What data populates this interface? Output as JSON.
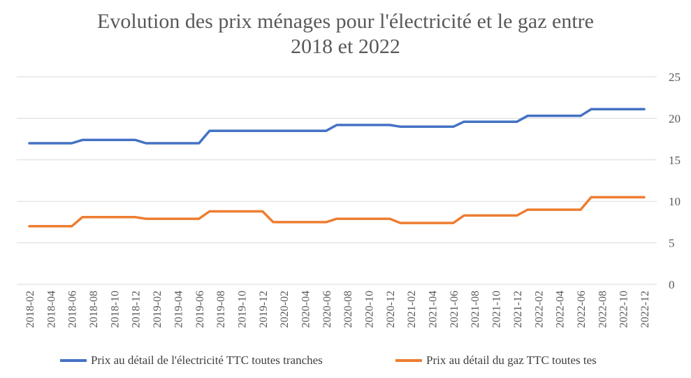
{
  "chart_data": {
    "type": "line",
    "title_line1": "Evolution des prix ménages pour l'électricité et le gaz entre",
    "title_line2": "2018 et 2022",
    "xlabel": "",
    "ylabel": "",
    "ylim": [
      0,
      25
    ],
    "yticks": [
      0,
      5,
      10,
      15,
      20,
      25
    ],
    "y_axis_side": "right",
    "grid": true,
    "legend_position": "bottom",
    "x": [
      "2018-02",
      "2018-03",
      "2018-04",
      "2018-05",
      "2018-06",
      "2018-07",
      "2018-08",
      "2018-09",
      "2018-10",
      "2018-11",
      "2018-12",
      "2019-01",
      "2019-02",
      "2019-03",
      "2019-04",
      "2019-05",
      "2019-06",
      "2019-07",
      "2019-08",
      "2019-09",
      "2019-10",
      "2019-11",
      "2019-12",
      "2020-01",
      "2020-02",
      "2020-03",
      "2020-04",
      "2020-05",
      "2020-06",
      "2020-07",
      "2020-08",
      "2020-09",
      "2020-10",
      "2020-11",
      "2020-12",
      "2021-01",
      "2021-02",
      "2021-03",
      "2021-04",
      "2021-05",
      "2021-06",
      "2021-07",
      "2021-08",
      "2021-09",
      "2021-10",
      "2021-11",
      "2021-12",
      "2022-01",
      "2022-02",
      "2022-03",
      "2022-04",
      "2022-05",
      "2022-06",
      "2022-07",
      "2022-08",
      "2022-09",
      "2022-10",
      "2022-11",
      "2022-12"
    ],
    "xtick_labels": [
      "2018-02",
      "2018-04",
      "2018-06",
      "2018-08",
      "2018-10",
      "2018-12",
      "2019-02",
      "2019-04",
      "2019-06",
      "2019-08",
      "2019-10",
      "2019-12",
      "2020-02",
      "2020-04",
      "2020-06",
      "2020-08",
      "2020-10",
      "2020-12",
      "2021-02",
      "2021-04",
      "2021-06",
      "2021-08",
      "2021-10",
      "2021-12",
      "2022-02",
      "2022-04",
      "2022-06",
      "2022-08",
      "2022-10",
      "2022-12"
    ],
    "series": [
      {
        "name": "Prix au détail de l'électricité TTC toutes tranches",
        "color": "#4472C4",
        "values": [
          17.0,
          17.0,
          17.0,
          17.0,
          17.0,
          17.4,
          17.4,
          17.4,
          17.4,
          17.4,
          17.4,
          17.0,
          17.0,
          17.0,
          17.0,
          17.0,
          17.0,
          18.5,
          18.5,
          18.5,
          18.5,
          18.5,
          18.5,
          18.5,
          18.5,
          18.5,
          18.5,
          18.5,
          18.5,
          19.2,
          19.2,
          19.2,
          19.2,
          19.2,
          19.2,
          19.0,
          19.0,
          19.0,
          19.0,
          19.0,
          19.0,
          19.6,
          19.6,
          19.6,
          19.6,
          19.6,
          19.6,
          20.3,
          20.3,
          20.3,
          20.3,
          20.3,
          20.3,
          21.1,
          21.1,
          21.1,
          21.1,
          21.1,
          21.1
        ]
      },
      {
        "name": "Prix au détail du gaz TTC toutes tes",
        "color": "#ED7D31",
        "values": [
          7.0,
          7.0,
          7.0,
          7.0,
          7.0,
          8.1,
          8.1,
          8.1,
          8.1,
          8.1,
          8.1,
          7.9,
          7.9,
          7.9,
          7.9,
          7.9,
          7.9,
          8.8,
          8.8,
          8.8,
          8.8,
          8.8,
          8.8,
          7.5,
          7.5,
          7.5,
          7.5,
          7.5,
          7.5,
          7.9,
          7.9,
          7.9,
          7.9,
          7.9,
          7.9,
          7.4,
          7.4,
          7.4,
          7.4,
          7.4,
          7.4,
          8.3,
          8.3,
          8.3,
          8.3,
          8.3,
          8.3,
          9.0,
          9.0,
          9.0,
          9.0,
          9.0,
          9.0,
          10.5,
          10.5,
          10.5,
          10.5,
          10.5,
          10.5
        ]
      }
    ]
  }
}
